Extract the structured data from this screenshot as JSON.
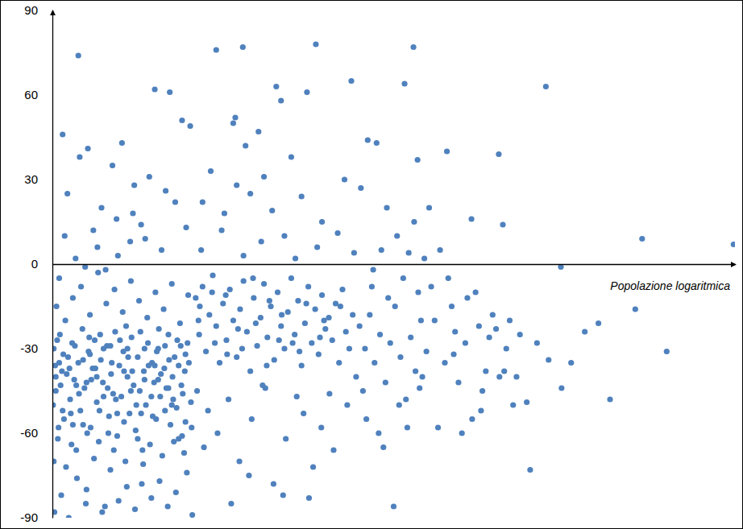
{
  "chart_data": {
    "type": "scatter",
    "x_label": "Popolazione logaritmica",
    "color": "#4f81bd",
    "xlim": [
      0,
      100
    ],
    "ylim": [
      -90,
      90
    ],
    "yticks": [
      -90,
      -60,
      -30,
      0,
      30,
      60,
      90
    ],
    "tick_labels": "y",
    "grid": false,
    "x": [
      0.2,
      0.5,
      0.8,
      1.1,
      1.4,
      1.7,
      2.0,
      2.3,
      2.6,
      2.9,
      3.2,
      3.5,
      3.8,
      4.1,
      4.4,
      4.7,
      5.0,
      5.3,
      5.6,
      5.9,
      6.2,
      6.5,
      6.8,
      7.1,
      7.4,
      7.7,
      8.0,
      8.3,
      8.6,
      8.9,
      9.2,
      9.5,
      9.8,
      10.1,
      10.4,
      10.7,
      11.0,
      11.3,
      11.6,
      11.9,
      12.2,
      12.5,
      12.8,
      13.1,
      13.4,
      13.7,
      14.0,
      14.3,
      14.6,
      14.9,
      15.2,
      15.5,
      15.8,
      16.1,
      16.4,
      16.7,
      17.0,
      17.3,
      17.6,
      17.9,
      18.2,
      18.5,
      18.8,
      19.1,
      19.4,
      19.7,
      20.0,
      20.3,
      0.3,
      0.6,
      1.0,
      1.3,
      1.9,
      2.4,
      3.0,
      3.6,
      4.2,
      4.9,
      5.5,
      6.1,
      6.7,
      7.3,
      7.9,
      8.5,
      9.1,
      9.7,
      10.3,
      10.9,
      11.5,
      12.1,
      12.7,
      13.3,
      13.9,
      14.5,
      15.1,
      15.7,
      16.3,
      16.9,
      17.5,
      18.1,
      18.7,
      19.3,
      19.9,
      20.5,
      0.1,
      0.4,
      0.7,
      0.9,
      1.2,
      1.6,
      2.1,
      2.7,
      3.3,
      3.9,
      4.5,
      5.1,
      5.7,
      6.3,
      6.9,
      7.5,
      8.1,
      8.7,
      9.3,
      9.9,
      10.5,
      11.1,
      11.7,
      12.3,
      12.9,
      13.5,
      14.1,
      14.7,
      15.3,
      15.9,
      16.5,
      17.1,
      17.7,
      18.3,
      18.9,
      19.5,
      3.8,
      1.5,
      2.2,
      4.0,
      5.2,
      6.0,
      7.2,
      8.8,
      9.4,
      10.2,
      11.4,
      12.0,
      13.0,
      14.2,
      15.0,
      16.0,
      17.2,
      18.0,
      19.0,
      20.2,
      1.8,
      3.4,
      4.8,
      6.6,
      7.8,
      9.6,
      11.8,
      13.6,
      16.6,
      19.6,
      0.2,
      2.8,
      5.4,
      8.2,
      10.8,
      13.2,
      15.6,
      17.8,
      20.4,
      19.8,
      21.0,
      21.5,
      22.0,
      22.5,
      23.0,
      23.5,
      24.0,
      24.5,
      25.0,
      25.5,
      26.0,
      26.5,
      27.0,
      27.5,
      28.0,
      28.5,
      29.0,
      29.5,
      30.0,
      30.5,
      31.0,
      31.5,
      32.0,
      32.5,
      33.0,
      33.5,
      34.0,
      34.5,
      35.0,
      35.5,
      36.0,
      36.5,
      37.0,
      37.5,
      38.0,
      38.5,
      39.0,
      39.5,
      40.0,
      40.5,
      41.0,
      41.5,
      42.0,
      42.5,
      43.0,
      43.5,
      44.0,
      44.5,
      21.2,
      22.8,
      24.2,
      25.8,
      27.4,
      29.2,
      30.8,
      32.4,
      34.2,
      35.8,
      37.6,
      39.4,
      41.2,
      43.2,
      26.2,
      28.8,
      33.8,
      38.2,
      22.2,
      31.2,
      36.8,
      40.6,
      24.0,
      27.9,
      38.6,
      32.8,
      37.3,
      26.5,
      28.3,
      30.2,
      33.5,
      35.0,
      22.0,
      23.2,
      25.2,
      27.0,
      29.0,
      31.0,
      34.0,
      36.5,
      39.5,
      42.8,
      21.8,
      24.8,
      28.0,
      30.6,
      32.2,
      35.6,
      38.8,
      41.8,
      44.2,
      26.8,
      21.4,
      23.8,
      25.4,
      27.8,
      29.8,
      31.8,
      33.2,
      36.2,
      39.8,
      42.2,
      45.0,
      45.8,
      46.5,
      47.2,
      48.0,
      48.8,
      49.5,
      50.2,
      51.0,
      51.8,
      52.5,
      53.2,
      54.0,
      54.8,
      46.0,
      47.8,
      49.2,
      50.8,
      52.0,
      53.8,
      50.0,
      48.5,
      46.8,
      45.5,
      43.8,
      51.6,
      52.9,
      46.2,
      47.5,
      49.0,
      50.5,
      53.0,
      54.5,
      45.2,
      48.2,
      51.4,
      53.6,
      47.0,
      52.2,
      54.2,
      57.8,
      53.5,
      61.4,
      65.4,
      66.0,
      86.4,
      99.8,
      74.5,
      85.4,
      90.0,
      80.0,
      81.7,
      74.6,
      72.7,
      70.0,
      69.5,
      68.5,
      72.3,
      56.0,
      57.5,
      58.5,
      59.5,
      60.5,
      61.5,
      62.5,
      63.5,
      64.5,
      65.5,
      66.5,
      67.5,
      55.5,
      56.5,
      58.0,
      59.0,
      60.0,
      62.0,
      63.0,
      64.0,
      66.2,
      67.0,
      55.2,
      56.8,
      58.8,
      60.8,
      62.8,
      65.0,
      68.0,
      71.0,
      76.0,
      78.0,
      0.5,
      1.5,
      2.5,
      3.5,
      4.5,
      5.5,
      6.5,
      7.5,
      8.5,
      9.5,
      10.5,
      11.5,
      12.5,
      13.5,
      14.5,
      15.5,
      16.5,
      17.5,
      18.5,
      19.5,
      1.0,
      3.0,
      5.0,
      7.0,
      9.0,
      11.0,
      13.0,
      15.0,
      17.0,
      19.0,
      21.6,
      23.4,
      25.6,
      27.2,
      29.4,
      31.4,
      33.6,
      35.2,
      37.2,
      39.2
    ],
    "values": [
      -30,
      -45,
      -62,
      -25,
      -38,
      -55,
      -72,
      -33,
      -48,
      -28,
      -41,
      -66,
      -35,
      -52,
      -23,
      -44,
      -80,
      -31,
      -58,
      -37,
      -27,
      -49,
      -63,
      -34,
      -42,
      -86,
      -29,
      -54,
      -39,
      -46,
      -24,
      -61,
      -36,
      -47,
      -31,
      -70,
      -40,
      -53,
      -26,
      -43,
      -59,
      -33,
      -45,
      -78,
      -38,
      -50,
      -28,
      -64,
      -35,
      -42,
      -55,
      -30,
      -47,
      -68,
      -37,
      -44,
      -25,
      -57,
      -40,
      -33,
      -51,
      -62,
      -29,
      -46,
      -38,
      -74,
      -35,
      -49,
      -88,
      -15,
      -5,
      -82,
      -20,
      -90,
      -12,
      -76,
      -8,
      -85,
      -18,
      -69,
      -3,
      -88,
      -14,
      -73,
      -9,
      -84,
      -17,
      -79,
      -6,
      -87,
      -13,
      -71,
      -19,
      -83,
      -10,
      -77,
      -16,
      -86,
      -7,
      -81,
      -21,
      -67,
      -11,
      -89,
      -50,
      -36,
      -27,
      -58,
      -43,
      -32,
      -39,
      -53,
      -29,
      -46,
      -34,
      -60,
      -41,
      -37,
      -52,
      -30,
      -44,
      -35,
      -48,
      -27,
      -56,
      -33,
      -38,
      -50,
      -24,
      -41,
      -36,
      -54,
      -31,
      -39,
      -52,
      -34,
      -48,
      -27,
      -43,
      -32,
      74,
      46,
      25,
      38,
      41,
      12,
      20,
      35,
      16,
      43,
      8,
      28,
      14,
      31,
      62,
      5,
      61,
      22,
      51,
      49,
      10,
      2,
      -1,
      6,
      -2,
      3,
      18,
      9,
      26,
      13,
      -70,
      -64,
      -26,
      -60,
      -22,
      -66,
      -23,
      -63,
      -58,
      -28,
      -12,
      -25,
      -8,
      -31,
      -18,
      -4,
      -22,
      -35,
      -14,
      -27,
      -9,
      -20,
      -33,
      -16,
      -6,
      -24,
      -38,
      -12,
      -29,
      -19,
      -7,
      -26,
      -15,
      -34,
      -10,
      -22,
      -30,
      -17,
      -5,
      -25,
      -13,
      -36,
      -21,
      -8,
      -28,
      -16,
      -32,
      -11,
      -23,
      -19,
      -27,
      -14,
      -35,
      -9,
      -24,
      -30,
      -18,
      -40,
      -45,
      -52,
      -60,
      -48,
      -70,
      -55,
      -43,
      -78,
      -62,
      -47,
      -83,
      -58,
      -66,
      -50,
      -85,
      -75,
      -82,
      -72,
      -65,
      -44,
      -53,
      -46,
      76,
      77,
      78,
      63,
      61,
      50,
      42,
      47,
      58,
      38,
      22,
      33,
      18,
      28,
      25,
      31,
      10,
      24,
      15,
      30,
      5,
      12,
      3,
      8,
      19,
      2,
      6,
      11,
      4,
      52,
      -20,
      -28,
      -11,
      -30,
      -21,
      -13,
      -27,
      -31,
      -20,
      -15,
      -22,
      -30,
      -18,
      -35,
      -25,
      -42,
      -28,
      -15,
      -33,
      -48,
      -26,
      -38,
      -20,
      -31,
      -55,
      -60,
      -12,
      -50,
      -58,
      -44,
      -86,
      -65,
      -8,
      -45,
      65,
      64,
      77,
      44,
      43,
      20,
      10,
      15,
      2,
      27,
      5,
      -5,
      -10,
      -2,
      4,
      -40,
      40,
      37,
      16,
      39,
      14,
      9,
      7,
      -1,
      -16,
      -31,
      -21,
      -48,
      -44,
      -34,
      -73,
      -49,
      -25,
      63,
      -20,
      -35,
      -15,
      -42,
      -28,
      -55,
      -22,
      -38,
      -18,
      -40,
      -30,
      -50,
      -8,
      -58,
      -5,
      -24,
      -60,
      -10,
      -45,
      -26,
      -38,
      -20,
      20,
      5,
      -32,
      -12,
      -52,
      -23,
      -40,
      -28,
      -35,
      -24,
      -40,
      -52,
      -37,
      -43,
      -57,
      -32,
      -40,
      -47,
      -29,
      -53,
      -38,
      -45,
      -62,
      -30,
      -47,
      -41,
      -29,
      -50,
      -36,
      -56,
      -35,
      -57,
      -42,
      -25,
      -66,
      -30,
      -53,
      -36,
      -44,
      -61,
      -15,
      -10,
      -32,
      -23,
      -5,
      -36,
      -18,
      -28,
      -14,
      -26
    ]
  }
}
